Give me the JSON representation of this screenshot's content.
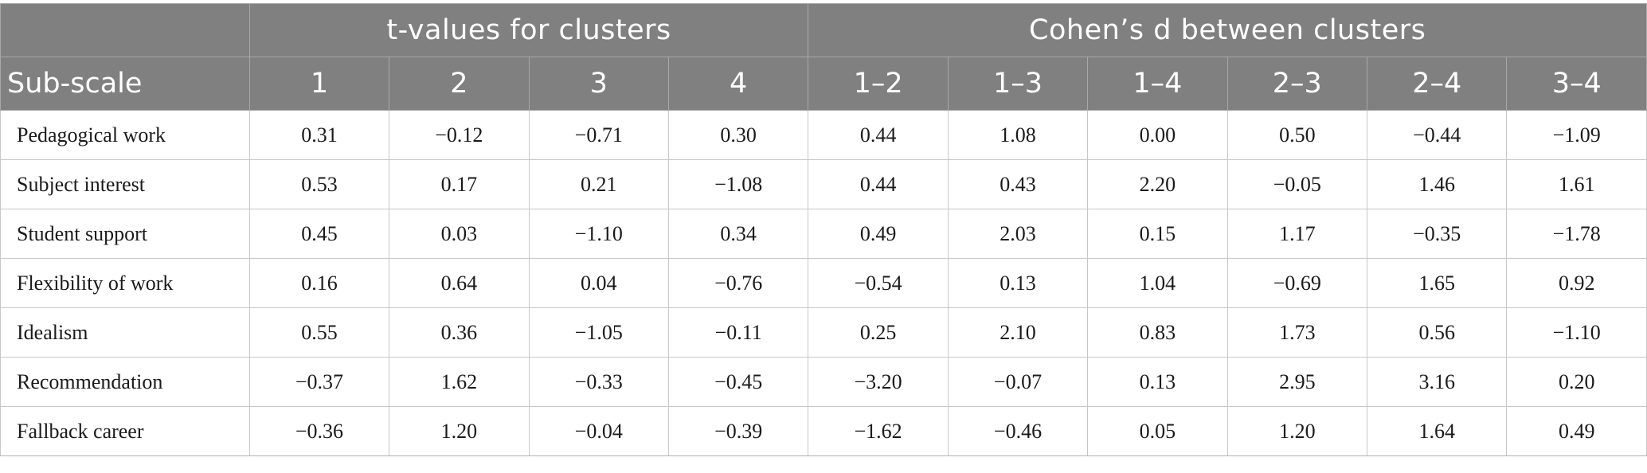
{
  "header": {
    "group_empty": "",
    "group_t": "t-values for clusters",
    "group_d": "Cohen’s d between clusters",
    "sub_scale": "Sub-scale",
    "t_cols": [
      "1",
      "2",
      "3",
      "4"
    ],
    "d_cols": [
      "1–2",
      "1–3",
      "1–4",
      "2–3",
      "2–4",
      "3–4"
    ]
  },
  "rows": [
    {
      "label": "Pedagogical work",
      "t": [
        "0.31",
        "−0.12",
        "−0.71",
        "0.30"
      ],
      "d": [
        "0.44",
        "1.08",
        "0.00",
        "0.50",
        "−0.44",
        "−1.09"
      ]
    },
    {
      "label": "Subject interest",
      "t": [
        "0.53",
        "0.17",
        "0.21",
        "−1.08"
      ],
      "d": [
        "0.44",
        "0.43",
        "2.20",
        "−0.05",
        "1.46",
        "1.61"
      ]
    },
    {
      "label": "Student support",
      "t": [
        "0.45",
        "0.03",
        "−1.10",
        "0.34"
      ],
      "d": [
        "0.49",
        "2.03",
        "0.15",
        "1.17",
        "−0.35",
        "−1.78"
      ]
    },
    {
      "label": "Flexibility of work",
      "t": [
        "0.16",
        "0.64",
        "0.04",
        "−0.76"
      ],
      "d": [
        "−0.54",
        "0.13",
        "1.04",
        "−0.69",
        "1.65",
        "0.92"
      ]
    },
    {
      "label": "Idealism",
      "t": [
        "0.55",
        "0.36",
        "−1.05",
        "−0.11"
      ],
      "d": [
        "0.25",
        "2.10",
        "0.83",
        "1.73",
        "0.56",
        "−1.10"
      ]
    },
    {
      "label": "Recommendation",
      "t": [
        "−0.37",
        "1.62",
        "−0.33",
        "−0.45"
      ],
      "d": [
        "−3.20",
        "−0.07",
        "0.13",
        "2.95",
        "3.16",
        "0.20"
      ]
    },
    {
      "label": "Fallback career",
      "t": [
        "−0.36",
        "1.20",
        "−0.04",
        "−0.39"
      ],
      "d": [
        "−1.62",
        "−0.46",
        "0.05",
        "1.20",
        "1.64",
        "0.49"
      ]
    }
  ]
}
